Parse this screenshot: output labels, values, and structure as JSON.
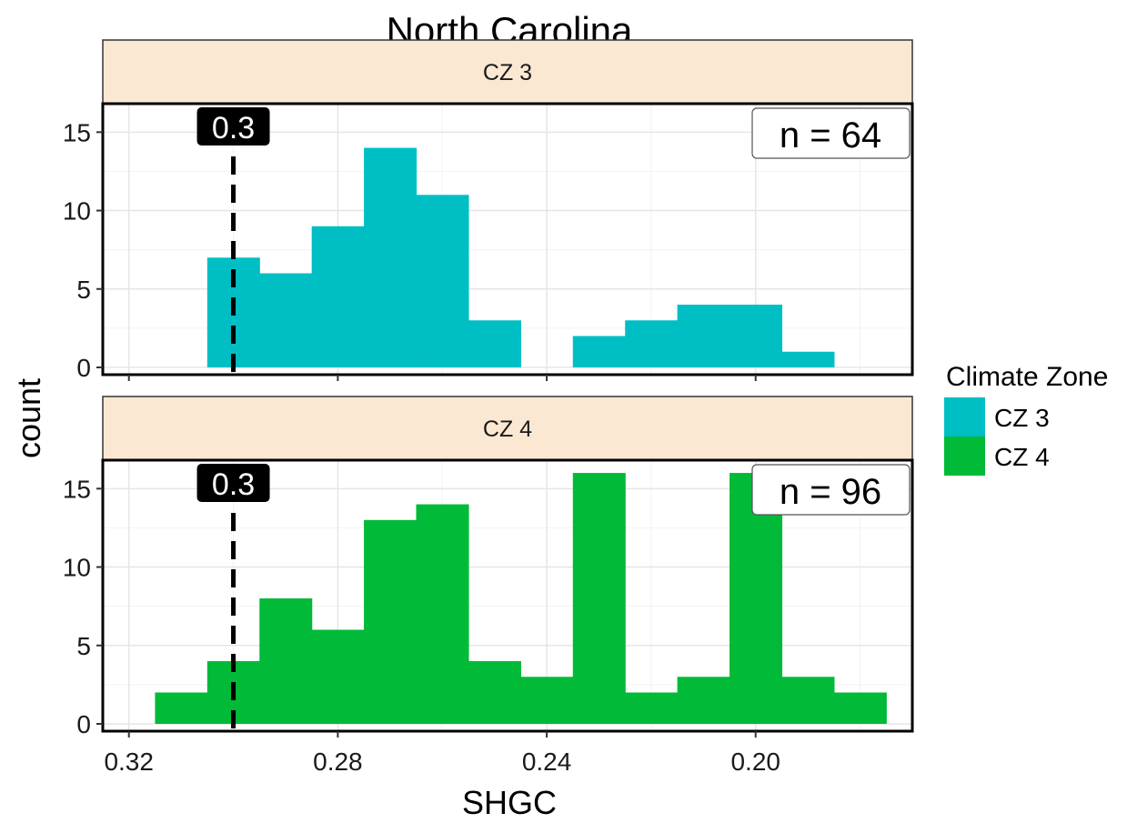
{
  "chart_data": {
    "type": "bar",
    "title": "North Carolina",
    "xlabel": "SHGC",
    "ylabel": "count",
    "x_reversed": true,
    "xlim": [
      0.325,
      0.17
    ],
    "ylim": [
      0,
      16.7
    ],
    "x_ticks": [
      "0.32",
      "0.28",
      "0.24",
      "0.20"
    ],
    "y_ticks": [
      "0",
      "5",
      "10",
      "15"
    ],
    "grid": true,
    "bin_width": 0.01,
    "reference_line": {
      "x": 0.3,
      "label": "0.3",
      "style": "dashed"
    },
    "legend": {
      "title": "Climate Zone",
      "position": "right"
    },
    "panels": [
      {
        "strip": "CZ 3",
        "series_name": "CZ 3",
        "color": "#00BFC4",
        "n_label": "n =  64",
        "bins": [
          {
            "x": 0.3,
            "count": 7
          },
          {
            "x": 0.29,
            "count": 6
          },
          {
            "x": 0.28,
            "count": 9
          },
          {
            "x": 0.27,
            "count": 14
          },
          {
            "x": 0.26,
            "count": 11
          },
          {
            "x": 0.25,
            "count": 3
          },
          {
            "x": 0.24,
            "count": 0
          },
          {
            "x": 0.23,
            "count": 2
          },
          {
            "x": 0.22,
            "count": 3
          },
          {
            "x": 0.21,
            "count": 4
          },
          {
            "x": 0.2,
            "count": 4
          },
          {
            "x": 0.19,
            "count": 1
          }
        ]
      },
      {
        "strip": "CZ 4",
        "series_name": "CZ 4",
        "color": "#00BA38",
        "n_label": "n =  96",
        "bins": [
          {
            "x": 0.31,
            "count": 2
          },
          {
            "x": 0.3,
            "count": 4
          },
          {
            "x": 0.29,
            "count": 8
          },
          {
            "x": 0.28,
            "count": 6
          },
          {
            "x": 0.27,
            "count": 13
          },
          {
            "x": 0.26,
            "count": 14
          },
          {
            "x": 0.25,
            "count": 4
          },
          {
            "x": 0.24,
            "count": 3
          },
          {
            "x": 0.23,
            "count": 16
          },
          {
            "x": 0.22,
            "count": 2
          },
          {
            "x": 0.21,
            "count": 3
          },
          {
            "x": 0.2,
            "count": 16
          },
          {
            "x": 0.19,
            "count": 3
          },
          {
            "x": 0.18,
            "count": 2
          }
        ]
      }
    ]
  }
}
